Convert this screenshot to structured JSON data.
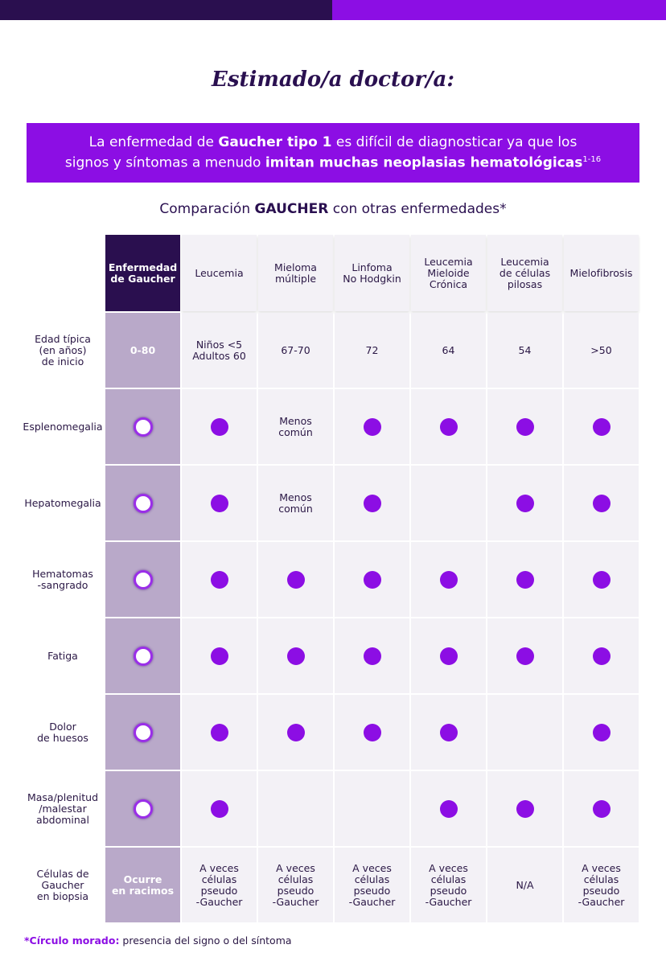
{
  "header": {
    "title": "Estimado/a doctor/a:"
  },
  "banner": {
    "parts": [
      "La enfermedad de ",
      "Gaucher tipo 1",
      " es difícil de diagnosticar ya que los",
      "signos y síntomas a menudo ",
      "imitan muchas neoplasias hematológicas",
      "1-16"
    ]
  },
  "subtitle": {
    "parts": [
      "Comparación ",
      "GAUCHER",
      " con otras enfermedades*"
    ]
  },
  "table": {
    "columns": [
      "Enfermedad\nde Gaucher",
      "Leucemia",
      "Mieloma\nmúltiple",
      "Linfoma\nNo Hodgkin",
      "Leucemia\nMieloide\nCrónica",
      "Leucemia\nde células\npilosas",
      "Mielofibrosis"
    ],
    "rows": [
      {
        "label": "Edad típica\n(en años)\nde inicio",
        "cells": [
          "0-80",
          "Niños <5\nAdultos 60",
          "67-70",
          "72",
          "64",
          "54",
          ">50"
        ]
      },
      {
        "label": "Esplenomegalia",
        "cells": [
          true,
          true,
          "Menos\ncomún",
          true,
          true,
          true,
          true
        ]
      },
      {
        "label": "Hepatomegalia",
        "cells": [
          true,
          true,
          "Menos\ncomún",
          true,
          null,
          true,
          true
        ]
      },
      {
        "label": "Hematomas\n-sangrado",
        "cells": [
          true,
          true,
          true,
          true,
          true,
          true,
          true
        ]
      },
      {
        "label": "Fatiga",
        "cells": [
          true,
          true,
          true,
          true,
          true,
          true,
          true
        ]
      },
      {
        "label": "Dolor\nde huesos",
        "cells": [
          true,
          true,
          true,
          true,
          true,
          null,
          true
        ]
      },
      {
        "label": "Masa/plenitud\n/malestar\nabdominal",
        "cells": [
          true,
          true,
          null,
          null,
          true,
          true,
          true
        ]
      },
      {
        "label": "Células de\nGaucher\nen biopsia",
        "cells": [
          "Ocurre\nen racimos",
          "A veces\ncélulas\npseudo\n-Gaucher",
          "A veces\ncélulas\npseudo\n-Gaucher",
          "A veces\ncélulas\npseudo\n-Gaucher",
          "A veces\ncélulas\npseudo\n-Gaucher",
          "N/A",
          "A veces\ncélulas\npseudo\n-Gaucher"
        ]
      }
    ]
  },
  "footnote": {
    "parts": [
      "*Círculo morado:",
      " presencia del signo o del síntoma"
    ]
  }
}
